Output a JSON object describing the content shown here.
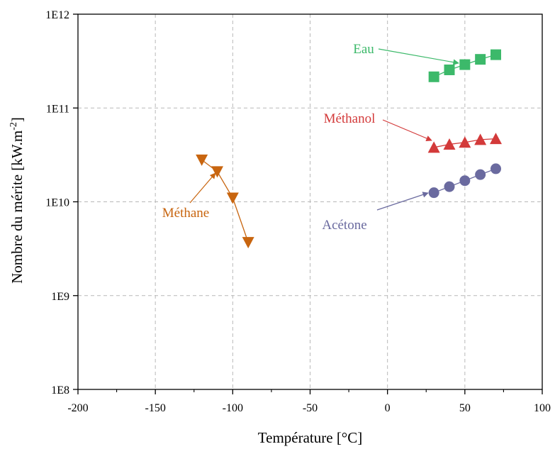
{
  "chart_data": {
    "type": "scatter",
    "xlabel": "Température [°C]",
    "ylabel": "Nombre du mérite [kW.m",
    "ylabel_sup": "-2",
    "ylabel_end": "]",
    "xlim": [
      -200,
      100
    ],
    "ylim": [
      100000000,
      1000000000000
    ],
    "yscale": "log",
    "grid": true,
    "x_ticks": [
      -200,
      -150,
      -100,
      -50,
      0,
      50,
      100
    ],
    "x_tick_labels": [
      "-200",
      "-150",
      "-100",
      "-50",
      "0",
      "50",
      "100"
    ],
    "y_ticks": [
      100000000,
      1000000000,
      10000000000,
      100000000000,
      1000000000000
    ],
    "y_tick_labels": [
      "1E8",
      "1E9",
      "1E10",
      "1E11",
      "1E12"
    ],
    "series": [
      {
        "name": "Eau",
        "marker": "square",
        "color": "#3cb96a",
        "x": [
          30,
          40,
          50,
          60,
          70
        ],
        "y": [
          215000000000,
          255000000000,
          290000000000,
          330000000000,
          370000000000
        ]
      },
      {
        "name": "Méthanol",
        "marker": "triangle-up",
        "color": "#d33a3a",
        "x": [
          30,
          40,
          50,
          60,
          70
        ],
        "y": [
          38000000000,
          41000000000,
          43000000000,
          46000000000,
          47000000000
        ]
      },
      {
        "name": "Acétone",
        "marker": "circle",
        "color": "#6a6a9f",
        "x": [
          30,
          40,
          50,
          60,
          70
        ],
        "y": [
          12500000000,
          14500000000,
          16800000000,
          19500000000,
          22500000000
        ]
      },
      {
        "name": "Méthane",
        "marker": "triangle-down",
        "color": "#c8650f",
        "x": [
          -120,
          -110,
          -100,
          -90
        ],
        "y": [
          28000000000,
          21000000000,
          11000000000,
          3700000000
        ]
      }
    ]
  }
}
